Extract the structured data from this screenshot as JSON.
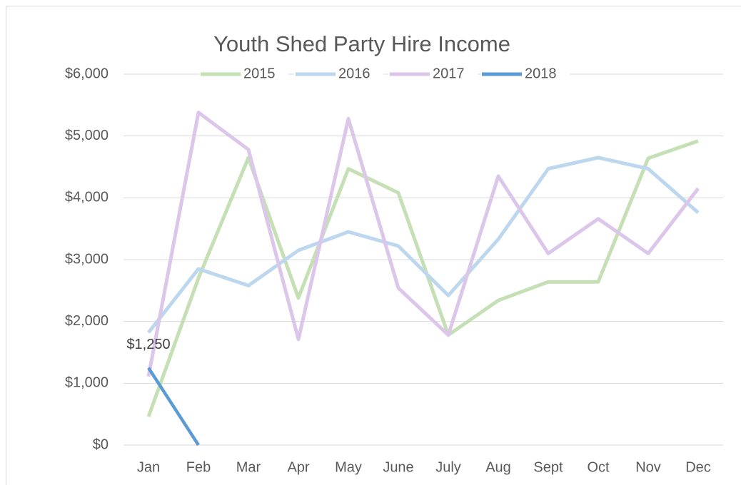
{
  "chart_data": {
    "type": "line",
    "title": "Youth Shed Party Hire Income",
    "categories": [
      "Jan",
      "Feb",
      "Mar",
      "Apr",
      "May",
      "June",
      "July",
      "Aug",
      "Sept",
      "Oct",
      "Nov",
      "Dec"
    ],
    "series": [
      {
        "name": "2015",
        "color": "#c5e0b4",
        "values": [
          460,
          2700,
          4650,
          2380,
          4470,
          4080,
          1780,
          2340,
          2640,
          2640,
          4640,
          4920
        ]
      },
      {
        "name": "2016",
        "color": "#bdd7ee",
        "values": [
          1820,
          2850,
          2580,
          3150,
          3450,
          3220,
          2420,
          3330,
          4470,
          4650,
          4470,
          3760
        ]
      },
      {
        "name": "2017",
        "color": "#dcc6ea",
        "values": [
          1110,
          5380,
          4780,
          1710,
          5280,
          2540,
          1780,
          4350,
          3100,
          3660,
          3100,
          4150
        ]
      },
      {
        "name": "2018",
        "color": "#5b9bd5",
        "values": [
          1250,
          0,
          null,
          null,
          null,
          null,
          null,
          null,
          null,
          null,
          null,
          null
        ],
        "value_labels": [
          "$1,250",
          null,
          null,
          null,
          null,
          null,
          null,
          null,
          null,
          null,
          null,
          null
        ]
      }
    ],
    "ylim": [
      0,
      6000
    ],
    "yticks": [
      {
        "value": 0,
        "label": "$0"
      },
      {
        "value": 1000,
        "label": "$1,000"
      },
      {
        "value": 2000,
        "label": "$2,000"
      },
      {
        "value": 3000,
        "label": "$3,000"
      },
      {
        "value": 4000,
        "label": "$4,000"
      },
      {
        "value": 5000,
        "label": "$5,000"
      },
      {
        "value": 6000,
        "label": "$6,000"
      }
    ],
    "grid": true,
    "legend": "top"
  }
}
